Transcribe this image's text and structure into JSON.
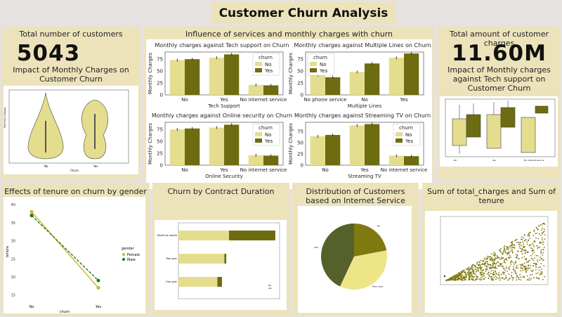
{
  "header": {
    "title": "Customer Churn Analysis"
  },
  "kpi_customers": {
    "title": "Total number of customers",
    "value": "5043",
    "chart_title": "Impact of Monthly Charges on Customer Churn"
  },
  "kpi_charges": {
    "title": "Total amount of customer charges",
    "value": "11.60M",
    "chart_title": "Impact of Monthly charges against Tech support on Customer Churn"
  },
  "services": {
    "title": "Influence of services and monthly charges with churn"
  },
  "tenure_gender": {
    "title": "Effects of tenure on churn by gender"
  },
  "contract": {
    "title": "Churn by Contract Duration"
  },
  "internet": {
    "title": "Distribution of Customers based on Internet Service"
  },
  "sum_panel": {
    "title": "Sum of total_charges and Sum of tenure"
  },
  "colors": {
    "no": "#e4dd8e",
    "yes": "#6e6c10",
    "card": "#ede3bb"
  },
  "chart_data": [
    {
      "id": "tech_support",
      "type": "bar",
      "title": "Monthly charges against Tech support on Churn",
      "xlabel": "Tech Support",
      "ylabel": "Monthly Charges",
      "categories": [
        "No",
        "Yes",
        "No internet service"
      ],
      "legend_title": "churn",
      "series": [
        {
          "name": "No",
          "values": [
            73,
            78,
            21
          ]
        },
        {
          "name": "Yes",
          "values": [
            75,
            85,
            20
          ]
        }
      ],
      "yticks": [
        "0",
        "25",
        "50",
        "75"
      ],
      "ylim": [
        0,
        90
      ]
    },
    {
      "id": "multiple_lines",
      "type": "bar",
      "title": "Monthly charges against Multiple Lines on Churn",
      "xlabel": "Multiple Lines",
      "ylabel": "Monthly Charges",
      "categories": [
        "No phone service",
        "No",
        "Yes"
      ],
      "legend_title": "churn",
      "series": [
        {
          "name": "No",
          "values": [
            42,
            48,
            78
          ]
        },
        {
          "name": "Yes",
          "values": [
            37,
            66,
            87
          ]
        }
      ],
      "yticks": [
        "0",
        "25",
        "50",
        "75"
      ],
      "ylim": [
        0,
        90
      ]
    },
    {
      "id": "online_security",
      "type": "bar",
      "title": "Monthly charges against Online security on Churn",
      "xlabel": "Online Security",
      "ylabel": "Monthly Charges",
      "categories": [
        "No",
        "Yes",
        "No internet service"
      ],
      "legend_title": "churn",
      "series": [
        {
          "name": "No",
          "values": [
            75,
            79,
            21
          ]
        },
        {
          "name": "Yes",
          "values": [
            77,
            85,
            20
          ]
        }
      ],
      "yticks": [
        "0",
        "25",
        "50",
        "75"
      ],
      "ylim": [
        0,
        90
      ]
    },
    {
      "id": "streaming_tv",
      "type": "bar",
      "title": "Monthly charges against Streaming TV on Churn",
      "xlabel": "Streaming TV",
      "ylabel": "Monthly Charges",
      "categories": [
        "No",
        "Yes",
        "No internet service"
      ],
      "legend_title": "churn",
      "series": [
        {
          "name": "No",
          "values": [
            64,
            88,
            21
          ]
        },
        {
          "name": "Yes",
          "values": [
            67,
            91,
            20
          ]
        }
      ],
      "yticks": [
        "0",
        "25",
        "50",
        "75"
      ],
      "ylim": [
        0,
        95
      ]
    },
    {
      "id": "tenure_gender",
      "type": "line",
      "xlabel": "churn",
      "ylabel": "tenure",
      "categories": [
        "No",
        "Yes"
      ],
      "legend_title": "gender",
      "series": [
        {
          "name": "Female",
          "values": [
            38,
            17
          ]
        },
        {
          "name": "Male",
          "values": [
            37,
            19
          ]
        }
      ],
      "yticks": [
        "15",
        "20",
        "25",
        "30",
        "35",
        "40"
      ],
      "ylim": [
        13,
        41
      ]
    },
    {
      "id": "contract",
      "type": "bar",
      "categories": [
        "Month-to-month",
        "Two year",
        "One year"
      ],
      "series": [
        {
          "name": "No",
          "values": [
            1300,
            1180,
            1000
          ]
        },
        {
          "name": "Yes",
          "values": [
            1190,
            50,
            120
          ]
        }
      ],
      "xlim": [
        0,
        2600
      ]
    },
    {
      "id": "internet",
      "type": "pie",
      "categories": [
        "No",
        "Fiber optic",
        "DSL"
      ],
      "values": [
        22,
        35,
        43
      ]
    }
  ]
}
